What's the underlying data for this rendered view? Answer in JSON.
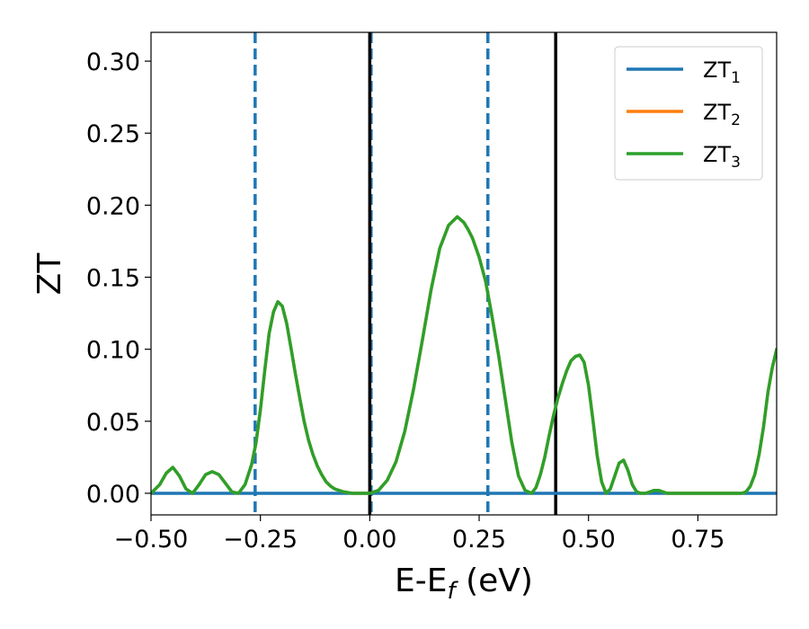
{
  "chart_data": {
    "type": "line",
    "xlabel_main": "E-E",
    "xlabel_sub": "f",
    "xlabel_unit": " (eV)",
    "ylabel": "ZT",
    "xlim": [
      -0.5,
      0.93
    ],
    "ylim": [
      -0.015,
      0.32
    ],
    "xticks": [
      -0.5,
      -0.25,
      0.0,
      0.25,
      0.5,
      0.75
    ],
    "xtick_labels": [
      "−0.50",
      "−0.25",
      "0.00",
      "0.25",
      "0.50",
      "0.75"
    ],
    "yticks": [
      0.0,
      0.05,
      0.1,
      0.15,
      0.2,
      0.25,
      0.3
    ],
    "ytick_labels": [
      "0.00",
      "0.05",
      "0.10",
      "0.15",
      "0.20",
      "0.25",
      "0.30"
    ],
    "grid": false,
    "legend_position": "top-right",
    "vlines": [
      {
        "x": -0.262,
        "style": "dashed",
        "color": "#1f77b4"
      },
      {
        "x": 0.003,
        "style": "dashed",
        "color": "#1f77b4"
      },
      {
        "x": 0.27,
        "style": "dashed",
        "color": "#1f77b4"
      },
      {
        "x": 0.0,
        "style": "solid",
        "color": "#000000"
      },
      {
        "x": 0.425,
        "style": "solid",
        "color": "#000000"
      }
    ],
    "series": [
      {
        "name": "ZT",
        "sub": "1",
        "color": "#1f77b4",
        "x": [
          -0.5,
          0.93
        ],
        "y": [
          0.0,
          0.0
        ]
      },
      {
        "name": "ZT",
        "sub": "2",
        "color": "#ff7f0e",
        "x": [
          -0.5,
          -0.48,
          -0.465,
          -0.45,
          -0.435,
          -0.42,
          -0.405,
          -0.39,
          -0.375,
          -0.36,
          -0.345,
          -0.33,
          -0.315,
          -0.3,
          -0.285,
          -0.27,
          -0.26,
          -0.25,
          -0.24,
          -0.23,
          -0.22,
          -0.21,
          -0.2,
          -0.19,
          -0.18,
          -0.17,
          -0.16,
          -0.15,
          -0.14,
          -0.13,
          -0.12,
          -0.11,
          -0.1,
          -0.09,
          -0.08,
          -0.06,
          -0.04,
          -0.02,
          0.0,
          0.02,
          0.04,
          0.06,
          0.08,
          0.1,
          0.12,
          0.14,
          0.16,
          0.18,
          0.2,
          0.215,
          0.225,
          0.235,
          0.25,
          0.265,
          0.28,
          0.295,
          0.31,
          0.325,
          0.34,
          0.355,
          0.37,
          0.38,
          0.39,
          0.4,
          0.41,
          0.42,
          0.43,
          0.44,
          0.45,
          0.46,
          0.47,
          0.48,
          0.49,
          0.5,
          0.51,
          0.52,
          0.53,
          0.54,
          0.55,
          0.56,
          0.57,
          0.58,
          0.59,
          0.6,
          0.61,
          0.62,
          0.63,
          0.64,
          0.65,
          0.66,
          0.67,
          0.68,
          0.69,
          0.7,
          0.71,
          0.72,
          0.74,
          0.76,
          0.78,
          0.8,
          0.82,
          0.84,
          0.85,
          0.86,
          0.87,
          0.88,
          0.89,
          0.9,
          0.91,
          0.92,
          0.93
        ],
        "y": [
          0.0,
          0.006,
          0.014,
          0.018,
          0.012,
          0.003,
          0.0,
          0.006,
          0.013,
          0.015,
          0.013,
          0.007,
          0.001,
          0.0,
          0.006,
          0.02,
          0.035,
          0.058,
          0.085,
          0.111,
          0.126,
          0.133,
          0.13,
          0.118,
          0.101,
          0.083,
          0.066,
          0.05,
          0.037,
          0.027,
          0.019,
          0.013,
          0.008,
          0.005,
          0.003,
          0.001,
          0.0,
          0.0,
          0.0,
          0.002,
          0.009,
          0.022,
          0.043,
          0.072,
          0.106,
          0.141,
          0.17,
          0.186,
          0.192,
          0.188,
          0.183,
          0.177,
          0.164,
          0.147,
          0.122,
          0.095,
          0.065,
          0.035,
          0.012,
          0.002,
          0.0,
          0.004,
          0.013,
          0.025,
          0.04,
          0.054,
          0.066,
          0.076,
          0.085,
          0.092,
          0.095,
          0.096,
          0.091,
          0.075,
          0.051,
          0.026,
          0.008,
          0.0,
          0.003,
          0.012,
          0.021,
          0.023,
          0.016,
          0.006,
          0.001,
          0.0,
          0.0,
          0.001,
          0.002,
          0.002,
          0.001,
          0.0,
          0.0,
          0.0,
          0.0,
          0.0,
          0.0,
          0.0,
          0.0,
          0.0,
          0.0,
          0.0,
          0.0,
          0.001,
          0.005,
          0.013,
          0.027,
          0.046,
          0.07,
          0.087,
          0.1
        ]
      },
      {
        "name": "ZT",
        "sub": "3",
        "color": "#2ca02c",
        "x": [
          -0.5,
          -0.48,
          -0.465,
          -0.45,
          -0.435,
          -0.42,
          -0.405,
          -0.39,
          -0.375,
          -0.36,
          -0.345,
          -0.33,
          -0.315,
          -0.3,
          -0.285,
          -0.27,
          -0.26,
          -0.25,
          -0.24,
          -0.23,
          -0.22,
          -0.21,
          -0.2,
          -0.19,
          -0.18,
          -0.17,
          -0.16,
          -0.15,
          -0.14,
          -0.13,
          -0.12,
          -0.11,
          -0.1,
          -0.09,
          -0.08,
          -0.06,
          -0.04,
          -0.02,
          0.0,
          0.02,
          0.04,
          0.06,
          0.08,
          0.1,
          0.12,
          0.14,
          0.16,
          0.18,
          0.2,
          0.215,
          0.225,
          0.235,
          0.25,
          0.265,
          0.28,
          0.295,
          0.31,
          0.325,
          0.34,
          0.355,
          0.37,
          0.38,
          0.39,
          0.4,
          0.41,
          0.42,
          0.43,
          0.44,
          0.45,
          0.46,
          0.47,
          0.48,
          0.49,
          0.5,
          0.51,
          0.52,
          0.53,
          0.54,
          0.55,
          0.56,
          0.57,
          0.58,
          0.59,
          0.6,
          0.61,
          0.62,
          0.63,
          0.64,
          0.65,
          0.66,
          0.67,
          0.68,
          0.69,
          0.7,
          0.71,
          0.72,
          0.74,
          0.76,
          0.78,
          0.8,
          0.82,
          0.84,
          0.85,
          0.86,
          0.87,
          0.88,
          0.89,
          0.9,
          0.91,
          0.92,
          0.93
        ],
        "y": [
          0.0,
          0.006,
          0.014,
          0.018,
          0.012,
          0.003,
          0.0,
          0.006,
          0.013,
          0.015,
          0.013,
          0.007,
          0.001,
          0.0,
          0.006,
          0.02,
          0.035,
          0.058,
          0.085,
          0.111,
          0.126,
          0.133,
          0.13,
          0.118,
          0.101,
          0.083,
          0.066,
          0.05,
          0.037,
          0.027,
          0.019,
          0.013,
          0.008,
          0.005,
          0.003,
          0.001,
          0.0,
          0.0,
          0.0,
          0.002,
          0.009,
          0.022,
          0.043,
          0.072,
          0.106,
          0.141,
          0.17,
          0.186,
          0.192,
          0.188,
          0.183,
          0.177,
          0.164,
          0.147,
          0.122,
          0.095,
          0.065,
          0.035,
          0.012,
          0.002,
          0.0,
          0.004,
          0.013,
          0.025,
          0.04,
          0.054,
          0.066,
          0.076,
          0.085,
          0.092,
          0.095,
          0.096,
          0.091,
          0.075,
          0.051,
          0.026,
          0.008,
          0.0,
          0.003,
          0.012,
          0.021,
          0.023,
          0.016,
          0.006,
          0.001,
          0.0,
          0.0,
          0.001,
          0.002,
          0.002,
          0.001,
          0.0,
          0.0,
          0.0,
          0.0,
          0.0,
          0.0,
          0.0,
          0.0,
          0.0,
          0.0,
          0.0,
          0.0,
          0.001,
          0.005,
          0.013,
          0.027,
          0.046,
          0.07,
          0.087,
          0.1
        ]
      }
    ]
  }
}
